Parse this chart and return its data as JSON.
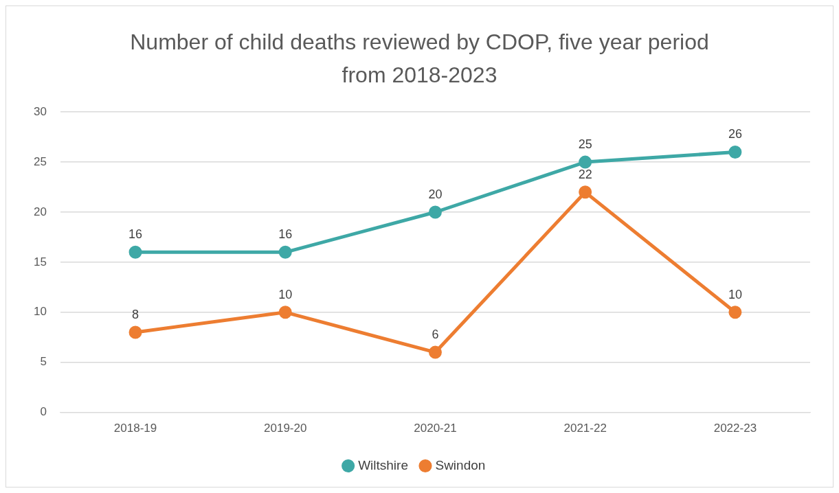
{
  "chart_data": {
    "type": "line",
    "title": "Number of child deaths reviewed by CDOP, five year period from 2018-2023",
    "categories": [
      "2018-19",
      "2019-20",
      "2020-21",
      "2021-22",
      "2022-23"
    ],
    "series": [
      {
        "name": "Wiltshire",
        "color": "#3ea8a6",
        "values": [
          16,
          16,
          20,
          25,
          26
        ]
      },
      {
        "name": "Swindon",
        "color": "#ed7d31",
        "values": [
          8,
          10,
          6,
          22,
          10
        ]
      }
    ],
    "ylim": [
      0,
      30
    ],
    "yticks": [
      0,
      5,
      10,
      15,
      20,
      25,
      30
    ],
    "grid": "y",
    "legend": "bottom",
    "marker": "circle",
    "line_style": "solid",
    "data_labels": true
  }
}
